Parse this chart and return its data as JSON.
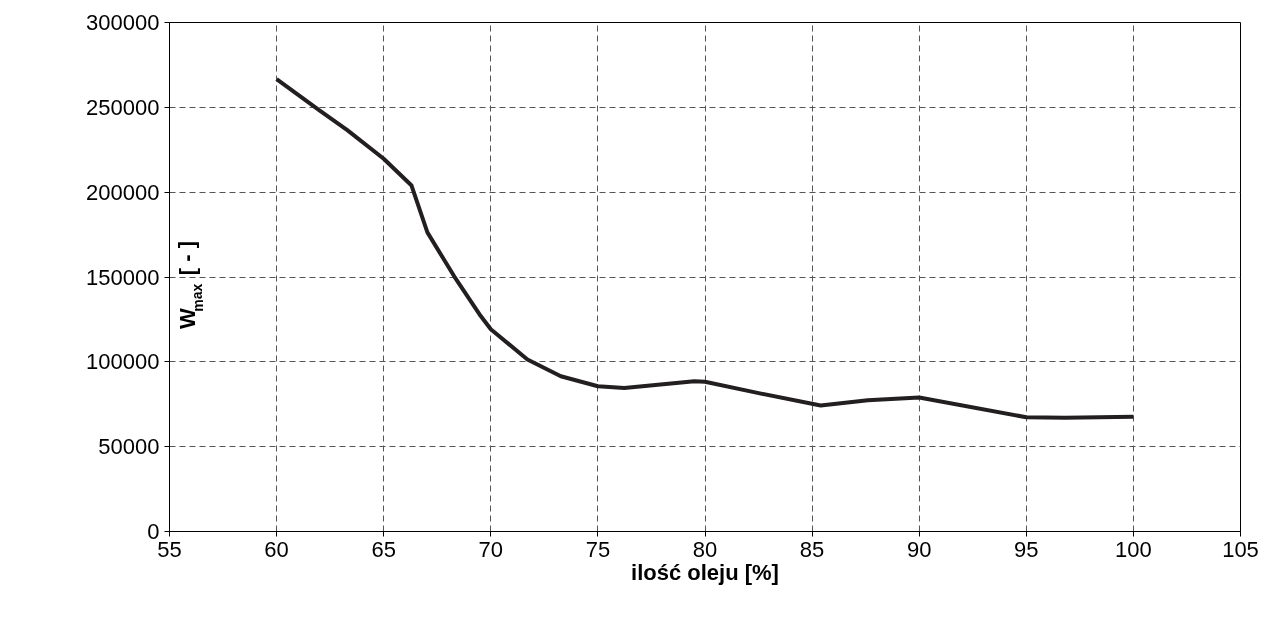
{
  "chart_data": {
    "type": "line",
    "xlabel": "ilość oleju [%]",
    "ylabel": "W$_{max}$ [ - ]",
    "x": [
      60,
      62,
      63.3,
      65,
      66.3,
      67.04,
      68.29,
      69.53,
      70,
      71.71,
      73.27,
      75,
      76.23,
      79.5,
      80,
      82.45,
      85.4,
      87.6,
      90,
      95,
      96.8,
      100
    ],
    "series": [
      {
        "color": "#231f20",
        "values": [
          266600,
          248200,
          236600,
          219700,
          203900,
          176300,
          150400,
          127000,
          119200,
          101400,
          91500,
          85600,
          84600,
          88500,
          88300,
          81700,
          74300,
          77300,
          79000,
          67300,
          67000,
          67700
        ]
      }
    ],
    "xlim": [
      55,
      105
    ],
    "xticks": [
      55,
      60,
      65,
      70,
      75,
      80,
      85,
      90,
      95,
      100,
      105
    ],
    "ylim": [
      0,
      300000
    ],
    "yticks": [
      0,
      50000,
      100000,
      150000,
      200000,
      250000,
      300000
    ],
    "grid": true,
    "marker": "none",
    "line_style": "solid"
  }
}
